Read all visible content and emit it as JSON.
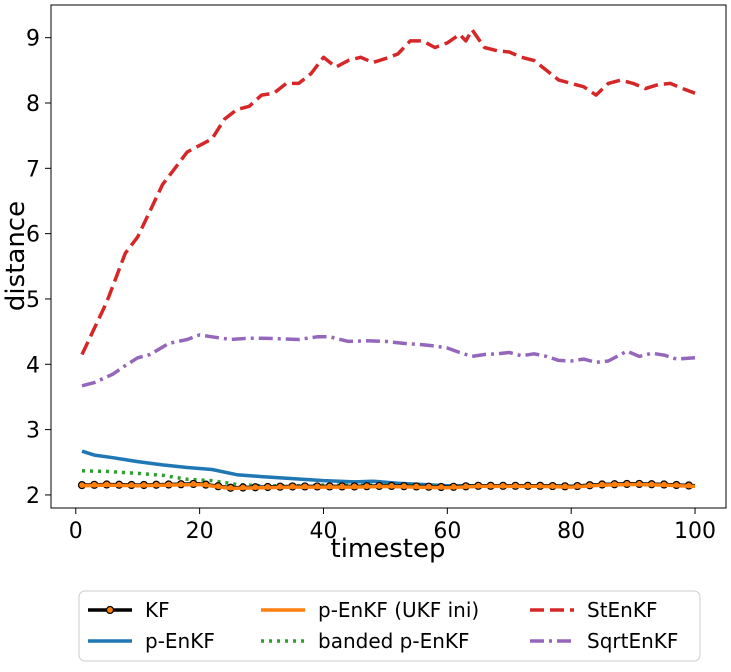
{
  "chart_data": {
    "type": "line",
    "title": "",
    "xlabel": "timestep",
    "ylabel": "distance",
    "xlim": [
      -4,
      105
    ],
    "ylim": [
      1.8,
      9.5
    ],
    "xticks": [
      0,
      20,
      40,
      60,
      80,
      100
    ],
    "yticks": [
      2,
      3,
      4,
      5,
      6,
      7,
      8,
      9
    ],
    "xtick_labels": [
      "0",
      "20",
      "40",
      "60",
      "80",
      "100"
    ],
    "ytick_labels": [
      "2",
      "3",
      "4",
      "5",
      "6",
      "7",
      "8",
      "9"
    ],
    "grid": false,
    "legend_position": "bottom, below plot",
    "series": [
      {
        "name": "KF",
        "color": "#000000",
        "style": "solid-circle-markers",
        "points": [
          [
            1,
            2.15
          ],
          [
            5,
            2.16
          ],
          [
            10,
            2.15
          ],
          [
            15,
            2.16
          ],
          [
            20,
            2.17
          ],
          [
            25,
            2.11
          ],
          [
            30,
            2.12
          ],
          [
            35,
            2.13
          ],
          [
            40,
            2.13
          ],
          [
            45,
            2.13
          ],
          [
            50,
            2.14
          ],
          [
            55,
            2.13
          ],
          [
            60,
            2.12
          ],
          [
            65,
            2.14
          ],
          [
            70,
            2.14
          ],
          [
            75,
            2.14
          ],
          [
            80,
            2.13
          ],
          [
            85,
            2.16
          ],
          [
            90,
            2.17
          ],
          [
            95,
            2.16
          ],
          [
            100,
            2.14
          ]
        ]
      },
      {
        "name": "p-EnKF",
        "color": "#1f77b4",
        "style": "solid",
        "points": [
          [
            1,
            2.67
          ],
          [
            3,
            2.61
          ],
          [
            6,
            2.57
          ],
          [
            10,
            2.51
          ],
          [
            14,
            2.46
          ],
          [
            18,
            2.42
          ],
          [
            22,
            2.39
          ],
          [
            26,
            2.31
          ],
          [
            30,
            2.28
          ],
          [
            35,
            2.25
          ],
          [
            40,
            2.22
          ],
          [
            45,
            2.2
          ],
          [
            48,
            2.21
          ],
          [
            52,
            2.18
          ],
          [
            56,
            2.16
          ],
          [
            60,
            2.14
          ],
          [
            65,
            2.14
          ],
          [
            70,
            2.14
          ],
          [
            75,
            2.14
          ],
          [
            80,
            2.13
          ],
          [
            85,
            2.16
          ],
          [
            90,
            2.17
          ],
          [
            95,
            2.16
          ],
          [
            100,
            2.14
          ]
        ]
      },
      {
        "name": "p-EnKF (UKF ini)",
        "color": "#ff7f0e",
        "style": "solid",
        "points": [
          [
            1,
            2.14
          ],
          [
            5,
            2.15
          ],
          [
            10,
            2.14
          ],
          [
            15,
            2.15
          ],
          [
            20,
            2.16
          ],
          [
            25,
            2.1
          ],
          [
            30,
            2.11
          ],
          [
            35,
            2.12
          ],
          [
            40,
            2.12
          ],
          [
            45,
            2.12
          ],
          [
            50,
            2.13
          ],
          [
            55,
            2.12
          ],
          [
            60,
            2.11
          ],
          [
            65,
            2.13
          ],
          [
            70,
            2.13
          ],
          [
            75,
            2.13
          ],
          [
            80,
            2.12
          ],
          [
            85,
            2.15
          ],
          [
            90,
            2.16
          ],
          [
            95,
            2.15
          ],
          [
            100,
            2.13
          ]
        ]
      },
      {
        "name": "banded p-EnKF",
        "color": "#2ca02c",
        "style": "dotted",
        "points": [
          [
            1,
            2.37
          ],
          [
            5,
            2.36
          ],
          [
            10,
            2.33
          ],
          [
            14,
            2.3
          ],
          [
            18,
            2.24
          ],
          [
            22,
            2.22
          ],
          [
            26,
            2.16
          ],
          [
            30,
            2.14
          ],
          [
            35,
            2.14
          ],
          [
            40,
            2.15
          ],
          [
            45,
            2.15
          ],
          [
            50,
            2.15
          ],
          [
            55,
            2.14
          ],
          [
            60,
            2.13
          ],
          [
            65,
            2.14
          ],
          [
            70,
            2.14
          ],
          [
            75,
            2.14
          ],
          [
            80,
            2.13
          ],
          [
            85,
            2.16
          ],
          [
            90,
            2.17
          ],
          [
            95,
            2.16
          ],
          [
            100,
            2.14
          ]
        ]
      },
      {
        "name": "StEnKF",
        "color": "#d62728",
        "style": "dashed",
        "points": [
          [
            1,
            4.15
          ],
          [
            3,
            4.55
          ],
          [
            5,
            4.95
          ],
          [
            8,
            5.7
          ],
          [
            10,
            5.95
          ],
          [
            12,
            6.35
          ],
          [
            14,
            6.75
          ],
          [
            16,
            7.0
          ],
          [
            18,
            7.25
          ],
          [
            20,
            7.35
          ],
          [
            22,
            7.45
          ],
          [
            24,
            7.75
          ],
          [
            26,
            7.9
          ],
          [
            28,
            7.95
          ],
          [
            30,
            8.12
          ],
          [
            32,
            8.15
          ],
          [
            34,
            8.3
          ],
          [
            36,
            8.3
          ],
          [
            38,
            8.45
          ],
          [
            40,
            8.7
          ],
          [
            42,
            8.55
          ],
          [
            44,
            8.65
          ],
          [
            46,
            8.7
          ],
          [
            48,
            8.62
          ],
          [
            50,
            8.68
          ],
          [
            52,
            8.75
          ],
          [
            54,
            8.95
          ],
          [
            56,
            8.95
          ],
          [
            58,
            8.85
          ],
          [
            60,
            8.92
          ],
          [
            62,
            9.05
          ],
          [
            63,
            8.95
          ],
          [
            64,
            9.12
          ],
          [
            66,
            8.85
          ],
          [
            68,
            8.8
          ],
          [
            70,
            8.78
          ],
          [
            72,
            8.7
          ],
          [
            74,
            8.65
          ],
          [
            76,
            8.5
          ],
          [
            78,
            8.35
          ],
          [
            80,
            8.3
          ],
          [
            82,
            8.25
          ],
          [
            84,
            8.12
          ],
          [
            86,
            8.3
          ],
          [
            88,
            8.35
          ],
          [
            90,
            8.3
          ],
          [
            92,
            8.22
          ],
          [
            94,
            8.28
          ],
          [
            96,
            8.3
          ],
          [
            98,
            8.22
          ],
          [
            100,
            8.15
          ]
        ]
      },
      {
        "name": "SqrtEnKF",
        "color": "#9467bd",
        "style": "dashdot",
        "points": [
          [
            1,
            3.67
          ],
          [
            3,
            3.72
          ],
          [
            6,
            3.85
          ],
          [
            8,
            3.98
          ],
          [
            10,
            4.1
          ],
          [
            12,
            4.15
          ],
          [
            15,
            4.32
          ],
          [
            18,
            4.38
          ],
          [
            20,
            4.45
          ],
          [
            22,
            4.42
          ],
          [
            25,
            4.38
          ],
          [
            28,
            4.4
          ],
          [
            30,
            4.4
          ],
          [
            33,
            4.39
          ],
          [
            36,
            4.38
          ],
          [
            39,
            4.42
          ],
          [
            41,
            4.42
          ],
          [
            44,
            4.35
          ],
          [
            47,
            4.36
          ],
          [
            50,
            4.35
          ],
          [
            53,
            4.32
          ],
          [
            56,
            4.3
          ],
          [
            58,
            4.28
          ],
          [
            60,
            4.25
          ],
          [
            62,
            4.18
          ],
          [
            64,
            4.12
          ],
          [
            66,
            4.15
          ],
          [
            68,
            4.16
          ],
          [
            70,
            4.18
          ],
          [
            72,
            4.13
          ],
          [
            74,
            4.16
          ],
          [
            76,
            4.12
          ],
          [
            78,
            4.06
          ],
          [
            80,
            4.05
          ],
          [
            82,
            4.08
          ],
          [
            84,
            4.03
          ],
          [
            86,
            4.05
          ],
          [
            88,
            4.15
          ],
          [
            89,
            4.2
          ],
          [
            91,
            4.12
          ],
          [
            93,
            4.17
          ],
          [
            95,
            4.14
          ],
          [
            97,
            4.08
          ],
          [
            100,
            4.1
          ]
        ]
      }
    ]
  }
}
